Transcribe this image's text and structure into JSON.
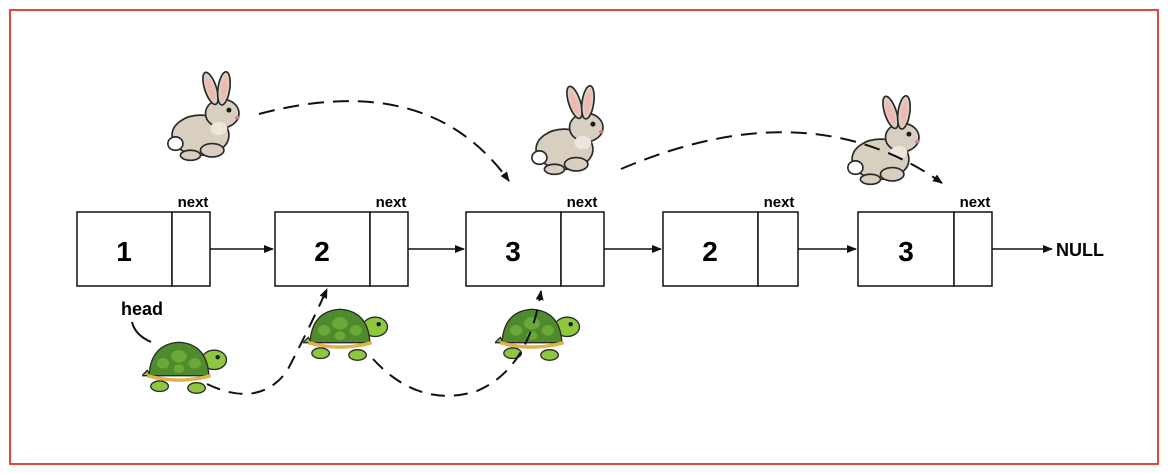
{
  "diagram": {
    "nodes": [
      {
        "value": "1",
        "next_label": "next"
      },
      {
        "value": "2",
        "next_label": "next"
      },
      {
        "value": "3",
        "next_label": "next"
      },
      {
        "value": "2",
        "next_label": "next"
      },
      {
        "value": "3",
        "next_label": "next"
      }
    ],
    "terminal_label": "NULL",
    "pointer_label": "head",
    "frame_color": "#e2483d",
    "icons": {
      "fast_pointer": "rabbit-icon",
      "slow_pointer": "turtle-icon"
    },
    "fast_pointer_positions": [
      1,
      3,
      5
    ],
    "slow_pointer_positions": [
      1,
      2,
      3
    ]
  }
}
